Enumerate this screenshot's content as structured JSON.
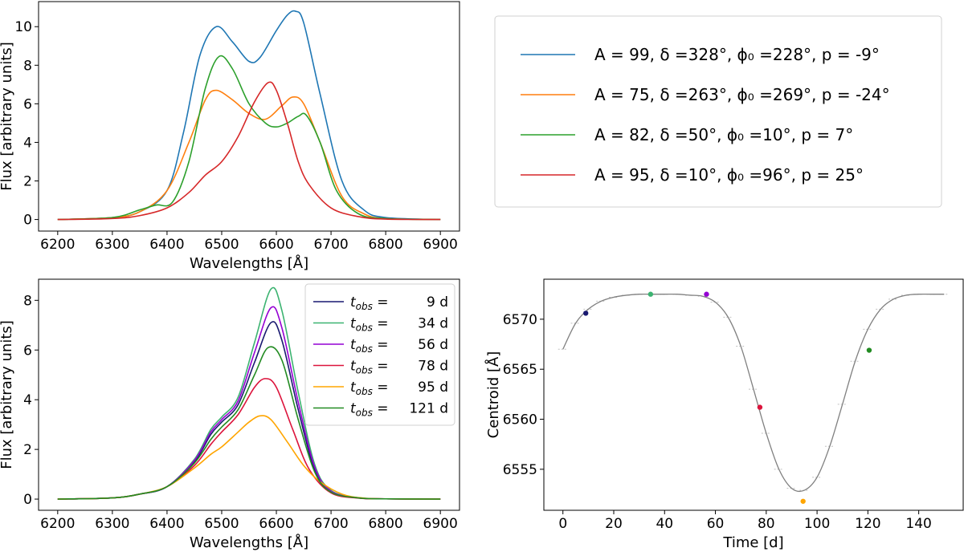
{
  "chart_data": [
    {
      "id": "top-left",
      "type": "line",
      "xlabel": "Wavelengths [Å]",
      "ylabel": "Flux [arbitrary units]",
      "xlim": [
        6165,
        6935
      ],
      "ylim": [
        -0.6,
        11.3
      ],
      "xticks": [
        6200,
        6300,
        6400,
        6500,
        6600,
        6700,
        6800,
        6900
      ],
      "yticks": [
        0,
        2,
        4,
        6,
        8,
        10
      ],
      "series": [
        {
          "name": "A = 99, δ =328°, ϕ₀ =228°, p = -9°",
          "color": "#1f77b4",
          "x": [
            6200,
            6300,
            6350,
            6400,
            6430,
            6460,
            6490,
            6520,
            6550,
            6570,
            6600,
            6620,
            6635,
            6650,
            6680,
            6720,
            6760,
            6800,
            6900
          ],
          "y": [
            0,
            0.1,
            0.4,
            1.5,
            4.5,
            8.5,
            10.0,
            9.2,
            8.2,
            8.4,
            9.8,
            10.6,
            10.8,
            10.2,
            6.5,
            2.0,
            0.5,
            0.1,
            0
          ]
        },
        {
          "name": "A = 75, δ =263°, ϕ₀ =269°, p = -24°",
          "color": "#ff7f0e",
          "x": [
            6200,
            6300,
            6350,
            6400,
            6440,
            6470,
            6490,
            6520,
            6550,
            6580,
            6610,
            6630,
            6650,
            6680,
            6720,
            6760,
            6800,
            6900
          ],
          "y": [
            0,
            0.1,
            0.4,
            1.5,
            4.0,
            6.2,
            6.7,
            6.2,
            5.5,
            5.2,
            5.9,
            6.35,
            6.0,
            4.0,
            1.2,
            0.3,
            0.05,
            0
          ]
        },
        {
          "name": "A = 82, δ =50°, ϕ₀ =10°, p = 7°",
          "color": "#2ca02c",
          "x": [
            6200,
            6300,
            6350,
            6380,
            6410,
            6440,
            6470,
            6495,
            6520,
            6550,
            6580,
            6600,
            6620,
            6640,
            6655,
            6680,
            6710,
            6750,
            6800,
            6900
          ],
          "y": [
            0,
            0.1,
            0.5,
            0.75,
            0.9,
            3.0,
            6.8,
            8.45,
            7.8,
            6.0,
            5.0,
            4.8,
            5.0,
            5.35,
            5.4,
            4.0,
            1.5,
            0.3,
            0.05,
            0
          ]
        },
        {
          "name": "A = 95, δ =10°, ϕ₀ =96°, p = 25°",
          "color": "#d62728",
          "x": [
            6200,
            6300,
            6350,
            6400,
            6440,
            6470,
            6500,
            6530,
            6560,
            6585,
            6600,
            6620,
            6640,
            6660,
            6700,
            6750,
            6800,
            6900
          ],
          "y": [
            0,
            0.05,
            0.2,
            0.6,
            1.4,
            2.3,
            3.0,
            4.3,
            6.1,
            7.1,
            6.7,
            5.0,
            3.0,
            1.8,
            0.6,
            0.15,
            0.02,
            0
          ]
        }
      ]
    },
    {
      "id": "bottom-left",
      "type": "line",
      "xlabel": "Wavelengths [Å]",
      "ylabel": "Flux [arbitrary units]",
      "xlim": [
        6165,
        6935
      ],
      "ylim": [
        -0.45,
        8.85
      ],
      "xticks": [
        6200,
        6300,
        6400,
        6500,
        6600,
        6700,
        6800,
        6900
      ],
      "yticks": [
        0,
        2,
        4,
        6,
        8
      ],
      "series": [
        {
          "name": "t_obs = 9 d",
          "label_main": "t",
          "label_sub": "obs",
          "label_value": "9 d",
          "color": "#191970",
          "x": [
            6200,
            6300,
            6350,
            6400,
            6450,
            6480,
            6500,
            6530,
            6560,
            6590,
            6610,
            6640,
            6670,
            6700,
            6750,
            6800,
            6900
          ],
          "y": [
            0,
            0.05,
            0.2,
            0.5,
            1.5,
            2.6,
            3.1,
            3.8,
            5.5,
            7.1,
            6.4,
            3.6,
            1.2,
            0.3,
            0.05,
            0.01,
            0
          ]
        },
        {
          "name": "t_obs = 34 d",
          "label_main": "t",
          "label_sub": "obs",
          "label_value": "34 d",
          "color": "#3cb371",
          "x": [
            6200,
            6300,
            6350,
            6400,
            6450,
            6480,
            6500,
            6530,
            6560,
            6590,
            6610,
            6640,
            6670,
            6700,
            6750,
            6800,
            6900
          ],
          "y": [
            0,
            0.05,
            0.2,
            0.5,
            1.6,
            2.8,
            3.3,
            4.1,
            6.3,
            8.45,
            7.6,
            4.3,
            1.4,
            0.35,
            0.05,
            0.01,
            0
          ]
        },
        {
          "name": "t_obs = 56 d",
          "label_main": "t",
          "label_sub": "obs",
          "label_value": "56 d",
          "color": "#9400d3",
          "x": [
            6200,
            6300,
            6350,
            6400,
            6450,
            6480,
            6500,
            6530,
            6560,
            6590,
            6610,
            6640,
            6670,
            6700,
            6750,
            6800,
            6900
          ],
          "y": [
            0,
            0.05,
            0.2,
            0.5,
            1.55,
            2.7,
            3.2,
            3.95,
            5.9,
            7.7,
            6.9,
            3.9,
            1.3,
            0.32,
            0.05,
            0.01,
            0
          ]
        },
        {
          "name": "t_obs = 78 d",
          "label_main": "t",
          "label_sub": "obs",
          "label_value": "78 d",
          "color": "#dc143c",
          "x": [
            6200,
            6300,
            6350,
            6400,
            6450,
            6480,
            6500,
            6530,
            6560,
            6580,
            6600,
            6630,
            6660,
            6700,
            6750,
            6800,
            6900
          ],
          "y": [
            0,
            0.05,
            0.2,
            0.5,
            1.35,
            2.2,
            2.7,
            3.4,
            4.5,
            4.85,
            4.5,
            2.8,
            1.2,
            0.25,
            0.04,
            0.01,
            0
          ]
        },
        {
          "name": "t_obs = 95 d",
          "label_main": "t",
          "label_sub": "obs",
          "label_value": "95 d",
          "color": "#ffa500",
          "x": [
            6200,
            6300,
            6350,
            6400,
            6450,
            6480,
            6500,
            6530,
            6550,
            6570,
            6590,
            6620,
            6650,
            6680,
            6720,
            6760,
            6800,
            6900
          ],
          "y": [
            0,
            0.05,
            0.2,
            0.5,
            1.25,
            1.8,
            2.1,
            2.7,
            3.1,
            3.35,
            3.2,
            2.3,
            1.35,
            0.7,
            0.2,
            0.04,
            0.01,
            0
          ]
        },
        {
          "name": "t_obs = 121 d",
          "label_main": "t",
          "label_sub": "obs",
          "label_value": "121 d",
          "color": "#228b22",
          "x": [
            6200,
            6300,
            6350,
            6400,
            6450,
            6480,
            6500,
            6530,
            6560,
            6585,
            6610,
            6640,
            6670,
            6700,
            6750,
            6800,
            6900
          ],
          "y": [
            0,
            0.05,
            0.2,
            0.5,
            1.45,
            2.4,
            2.9,
            3.6,
            5.0,
            6.1,
            5.6,
            3.2,
            1.1,
            0.28,
            0.05,
            0.01,
            0
          ]
        }
      ]
    },
    {
      "id": "bottom-right",
      "type": "scatter",
      "xlabel": "Time [d]",
      "ylabel": "Centroid [Å]",
      "xlim": [
        -7.5,
        157.5
      ],
      "ylim": [
        6550.9,
        6574.0
      ],
      "xticks": [
        0,
        20,
        40,
        60,
        80,
        100,
        120,
        140
      ],
      "yticks": [
        6555,
        6560,
        6565,
        6570
      ],
      "model_curve": {
        "color": "#808080",
        "x": [
          0,
          5,
          10,
          15,
          20,
          25,
          30,
          35,
          40,
          45,
          50,
          55,
          60,
          65,
          70,
          75,
          80,
          85,
          90,
          95,
          100,
          105,
          110,
          115,
          120,
          125,
          130,
          135,
          140,
          145,
          150
        ],
        "y": [
          6567.0,
          6569.6,
          6571.0,
          6571.8,
          6572.2,
          6572.4,
          6572.5,
          6572.5,
          6572.5,
          6572.5,
          6572.4,
          6572.3,
          6571.7,
          6570.2,
          6567.3,
          6563.0,
          6558.6,
          6555.0,
          6553.1,
          6552.9,
          6554.2,
          6557.3,
          6561.5,
          6565.8,
          6569.0,
          6571.0,
          6572.0,
          6572.4,
          6572.5,
          6572.5,
          6572.5
        ]
      },
      "points": [
        {
          "label": "t_obs = 9 d",
          "t": 9,
          "centroid": 6570.6,
          "color": "#191970"
        },
        {
          "label": "t_obs = 34 d",
          "t": 34.5,
          "centroid": 6572.5,
          "color": "#3cb371"
        },
        {
          "label": "t_obs = 56 d",
          "t": 56.5,
          "centroid": 6572.5,
          "color": "#9400d3"
        },
        {
          "label": "t_obs = 78 d",
          "t": 77.5,
          "centroid": 6561.2,
          "color": "#dc143c"
        },
        {
          "label": "t_obs = 95 d",
          "t": 94.5,
          "centroid": 6551.8,
          "color": "#ffa500"
        },
        {
          "label": "t_obs = 121 d",
          "t": 120.5,
          "centroid": 6566.9,
          "color": "#228b22"
        }
      ]
    }
  ]
}
